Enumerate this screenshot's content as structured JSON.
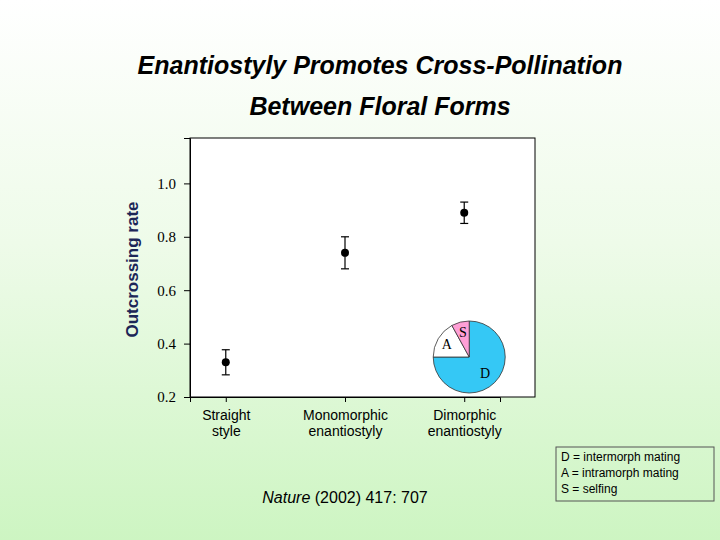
{
  "chart_data": {
    "type": "scatter",
    "title": "Enantiostyly Promotes Cross-Pollination",
    "subtitle": "Between Floral Forms",
    "y_label": "Outcrossing rate",
    "categories": [
      "Straight\nstyle",
      "Monomorphic\nenantiostyly",
      "Dimorphic\nenantiostyly"
    ],
    "values": [
      0.33,
      0.74,
      0.89
    ],
    "errors": [
      0.047,
      0.06,
      0.04
    ],
    "marker": "circle",
    "color": "#000000",
    "ylim": [
      0.2,
      1.17
    ],
    "yticks": [
      0.2,
      0.4,
      0.6,
      0.8,
      {
        "value": 1,
        "label": "1.0"
      }
    ],
    "grid": false,
    "inset": {
      "type": "pie",
      "categories": [
        "D",
        "A",
        "S"
      ],
      "values": [
        75,
        17,
        8
      ],
      "colors": [
        "#35c8f5",
        "#ffffff",
        "#ff9fd6"
      ]
    },
    "notes": [
      "D = intermorph mating",
      "A = intramorph mating",
      "S = selfing"
    ],
    "citation": {
      "journal": "Nature",
      "reference": "(2002) 417: 707"
    }
  }
}
